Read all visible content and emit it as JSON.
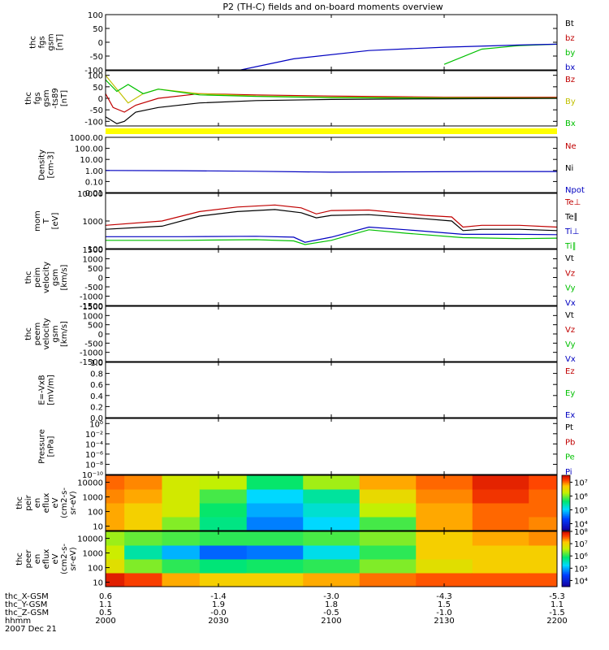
{
  "title": "P2 (TH-C) fields and on-board moments overview",
  "date": "2007 Dec 21",
  "xaxis": {
    "row_labels": [
      "thc_X-GSM",
      "thc_Y-GSM",
      "thc_Z-GSM",
      "hhmm"
    ],
    "columns": [
      [
        "0.6",
        "1.1",
        "0.5",
        "2000"
      ],
      [
        "-1.4",
        "1.9",
        "-0.0",
        "2030"
      ],
      [
        "-3.0",
        "1.8",
        "-0.5",
        "2100"
      ],
      [
        "-4.3",
        "1.5",
        "-1.0",
        "2130"
      ],
      [
        "-5.3",
        "1.1",
        "-1.5",
        "2200"
      ]
    ],
    "time_minutes": [
      0,
      30,
      60,
      90,
      120
    ]
  },
  "chart_data": [
    {
      "type": "line",
      "id": "fgs",
      "ylabel": [
        "thc",
        "fgs",
        "gsm",
        "[nT]"
      ],
      "ylim": [
        -100,
        100
      ],
      "ytick_labels": [
        "100",
        "50",
        "0",
        "-50",
        "-100"
      ],
      "ytick_values": [
        100,
        50,
        0,
        -50,
        -100
      ],
      "series": [
        {
          "name": "Bt",
          "color": "#000000",
          "x": [],
          "y": []
        },
        {
          "name": "bz",
          "color": "#c00000",
          "x": [],
          "y": []
        },
        {
          "name": "by",
          "color": "#00c000",
          "x": [
            90,
            100,
            110,
            120
          ],
          "y": [
            -80,
            -25,
            -12,
            -7
          ]
        },
        {
          "name": "bx",
          "color": "#0000c0",
          "x": [
            36,
            50,
            70,
            90,
            110,
            120
          ],
          "y": [
            -100,
            -60,
            -30,
            -18,
            -10,
            -7
          ]
        }
      ]
    },
    {
      "type": "line",
      "id": "fgs_zoom",
      "ylabel": [
        "thc",
        "fgs",
        "gsm",
        "-ts89",
        "[nT]"
      ],
      "ylim": [
        -120,
        120
      ],
      "ytick_labels": [
        "100",
        "50",
        "0",
        "-50",
        "-100"
      ],
      "ytick_values": [
        100,
        50,
        0,
        -50,
        -100
      ],
      "series": [
        {
          "name": "Bz",
          "color": "#c00000",
          "x": [
            0,
            2,
            5,
            8,
            14,
            25,
            40,
            60,
            90,
            120
          ],
          "y": [
            20,
            -40,
            -60,
            -30,
            0,
            20,
            15,
            10,
            5,
            5
          ]
        },
        {
          "name": "By",
          "color": "#c0c000",
          "x": [
            0,
            3,
            6,
            10,
            14,
            25,
            40,
            60,
            90,
            120
          ],
          "y": [
            100,
            40,
            -20,
            20,
            40,
            20,
            10,
            5,
            2,
            2
          ]
        },
        {
          "name": "Bx",
          "color": "#00c000",
          "x": [
            0,
            3,
            6,
            10,
            14,
            25,
            40,
            60,
            90,
            120
          ],
          "y": [
            80,
            30,
            60,
            20,
            40,
            15,
            8,
            3,
            0,
            0
          ]
        },
        {
          "name": "",
          "color": "#000000",
          "x": [
            0,
            3,
            5,
            8,
            14,
            25,
            40,
            60,
            90,
            120
          ],
          "y": [
            -80,
            -110,
            -100,
            -60,
            -40,
            -20,
            -10,
            -5,
            -2,
            0
          ]
        }
      ]
    },
    {
      "type": "line",
      "id": "density",
      "ylabel": [
        "Density",
        "[cm-3]"
      ],
      "scale": "log",
      "ylim": [
        0.01,
        1000
      ],
      "ytick_labels": [
        "1000.00",
        "100.00",
        "10.00",
        "1.00",
        "0.10",
        "0.01"
      ],
      "ytick_values": [
        1000,
        100,
        10,
        1,
        0.1,
        0.01
      ],
      "series": [
        {
          "name": "Ne",
          "color": "#c00000",
          "x": [],
          "y": []
        },
        {
          "name": "Ni",
          "color": "#000000",
          "x": [],
          "y": []
        },
        {
          "name": "Npot",
          "color": "#0000c0",
          "x": [
            0,
            20,
            40,
            60,
            80,
            100,
            120
          ],
          "y": [
            1.0,
            0.95,
            0.85,
            0.7,
            0.75,
            0.8,
            0.8
          ]
        }
      ]
    },
    {
      "type": "line",
      "id": "temp",
      "ylabel": [
        "mom",
        "T",
        "[eV]"
      ],
      "scale": "log",
      "ylim": [
        100,
        10000
      ],
      "ytick_labels": [
        "10000",
        "1000",
        "100"
      ],
      "ytick_values": [
        10000,
        1000,
        100
      ],
      "series": [
        {
          "name": "Te⊥",
          "color": "#c00000",
          "x": [
            0,
            15,
            25,
            35,
            45,
            52,
            56,
            60,
            70,
            85,
            92,
            95,
            100,
            110,
            120
          ],
          "y": [
            700,
            1000,
            2200,
            3200,
            3800,
            3000,
            1800,
            2400,
            2500,
            1600,
            1400,
            600,
            700,
            700,
            600
          ]
        },
        {
          "name": "Te∥",
          "color": "#000000",
          "x": [
            0,
            15,
            25,
            35,
            45,
            52,
            56,
            60,
            70,
            85,
            92,
            95,
            100,
            110,
            120
          ],
          "y": [
            500,
            650,
            1500,
            2200,
            2600,
            2000,
            1300,
            1600,
            1700,
            1200,
            1000,
            450,
            500,
            500,
            450
          ]
        },
        {
          "name": "Ti⊥",
          "color": "#0000c0",
          "x": [
            0,
            20,
            40,
            50,
            53,
            60,
            70,
            80,
            95,
            110,
            120
          ],
          "y": [
            270,
            270,
            280,
            260,
            170,
            260,
            600,
            480,
            330,
            330,
            320
          ]
        },
        {
          "name": "Ti∥",
          "color": "#00c000",
          "x": [
            0,
            20,
            40,
            50,
            53,
            60,
            70,
            80,
            95,
            110,
            120
          ],
          "y": [
            200,
            200,
            210,
            190,
            140,
            200,
            480,
            360,
            250,
            230,
            240
          ]
        }
      ]
    },
    {
      "type": "line",
      "id": "peim",
      "ylabel": [
        "thc",
        "peim",
        "velocity",
        "gsm",
        "[km/s]"
      ],
      "ylim": [
        -1500,
        1500
      ],
      "ytick_labels": [
        "1500",
        "1000",
        "500",
        "0",
        "-500",
        "-1000",
        "-1500"
      ],
      "ytick_values": [
        1500,
        1000,
        500,
        0,
        -500,
        -1000,
        -1500
      ],
      "series": [
        {
          "name": "Vt",
          "color": "#000000",
          "x": [],
          "y": []
        },
        {
          "name": "Vz",
          "color": "#c00000",
          "x": [],
          "y": []
        },
        {
          "name": "Vy",
          "color": "#00c000",
          "x": [],
          "y": []
        },
        {
          "name": "Vx",
          "color": "#0000c0",
          "x": [],
          "y": []
        }
      ]
    },
    {
      "type": "line",
      "id": "peem",
      "ylabel": [
        "thc",
        "peem",
        "velocity",
        "gsm",
        "[km/s]"
      ],
      "ylim": [
        -1500,
        1500
      ],
      "ytick_labels": [
        "1500",
        "1000",
        "500",
        "0",
        "-500",
        "-1000",
        "-1500"
      ],
      "ytick_values": [
        1500,
        1000,
        500,
        0,
        -500,
        -1000,
        -1500
      ],
      "series": [
        {
          "name": "Vt",
          "color": "#000000",
          "x": [],
          "y": []
        },
        {
          "name": "Vz",
          "color": "#c00000",
          "x": [],
          "y": []
        },
        {
          "name": "Vy",
          "color": "#00c000",
          "x": [],
          "y": []
        },
        {
          "name": "Vx",
          "color": "#0000c0",
          "x": [],
          "y": []
        }
      ]
    },
    {
      "type": "line",
      "id": "efield",
      "ylabel": [
        "E=-VxB",
        "[mV/m]"
      ],
      "ylim": [
        0,
        1
      ],
      "ytick_labels": [
        "1.0",
        "0.8",
        "0.6",
        "0.4",
        "0.2",
        "0.0"
      ],
      "ytick_values": [
        1.0,
        0.8,
        0.6,
        0.4,
        0.2,
        0.0
      ],
      "series": [
        {
          "name": "Ez",
          "color": "#c00000",
          "x": [],
          "y": []
        },
        {
          "name": "Ey",
          "color": "#00c000",
          "x": [],
          "y": []
        },
        {
          "name": "Ex",
          "color": "#0000c0",
          "x": [],
          "y": []
        }
      ]
    },
    {
      "type": "line",
      "id": "pressure",
      "ylabel": [
        "Pressure",
        "[nPa]"
      ],
      "scale": "log",
      "ylim": [
        1e-10,
        10
      ],
      "ytick_labels": [
        "10⁰",
        "10⁻²",
        "10⁻⁴",
        "10⁻⁶",
        "10⁻⁸",
        "10⁻¹⁰"
      ],
      "ytick_values": [
        1,
        0.01,
        0.0001,
        1e-06,
        1e-08,
        1e-10
      ],
      "series": [
        {
          "name": "Pt",
          "color": "#000000",
          "x": [],
          "y": []
        },
        {
          "name": "Pb",
          "color": "#c00000",
          "x": [],
          "y": []
        },
        {
          "name": "Pe",
          "color": "#00c000",
          "x": [],
          "y": []
        },
        {
          "name": "Pi",
          "color": "#0000c0",
          "x": [],
          "y": []
        }
      ]
    },
    {
      "type": "heatmap",
      "id": "peir",
      "ylabel": [
        "thc",
        "peir",
        "en",
        "eflux",
        "eV",
        "(cm2-s-",
        "sr-eV)"
      ],
      "ytick_labels": [
        "10000",
        "1000",
        "100",
        "10"
      ],
      "ytick_values": [
        10000,
        1000,
        100,
        10
      ],
      "colorbar_labels": [
        "10⁷",
        "10⁶",
        "10⁵",
        "10⁴"
      ],
      "colorbar_values": [
        7,
        6,
        5,
        4
      ],
      "color_range": [
        3.5,
        7.5
      ],
      "time_minutes": [
        0,
        10,
        20,
        30,
        45,
        60,
        75,
        90,
        105,
        120
      ],
      "energy_bands": [
        "10",
        "100",
        "1000",
        "10000"
      ],
      "log_eflux": [
        [
          6.8,
          6.8,
          6.9,
          7.0
        ],
        [
          6.6,
          6.6,
          6.8,
          6.9
        ],
        [
          6.0,
          6.3,
          6.3,
          6.3
        ],
        [
          5.5,
          5.6,
          5.8,
          6.2
        ],
        [
          4.6,
          4.8,
          5.0,
          5.6
        ],
        [
          5.0,
          5.2,
          5.4,
          6.1
        ],
        [
          5.8,
          6.2,
          6.5,
          6.8
        ],
        [
          6.8,
          6.8,
          6.9,
          7.0
        ],
        [
          7.0,
          7.0,
          7.2,
          7.3
        ],
        [
          6.9,
          7.0,
          7.0,
          7.1
        ]
      ]
    },
    {
      "type": "heatmap",
      "id": "peer",
      "ylabel": [
        "thc",
        "peer",
        "en",
        "eflux",
        "eV",
        "(cm2-s-",
        "sr-eV)"
      ],
      "ytick_labels": [
        "10000",
        "1000",
        "100",
        "10"
      ],
      "ytick_values": [
        10000,
        1000,
        100,
        10
      ],
      "colorbar_labels": [
        "10⁸",
        "10⁷",
        "10⁶",
        "10⁵",
        "10⁴"
      ],
      "colorbar_values": [
        8,
        7,
        6,
        5,
        4
      ],
      "color_range": [
        3.5,
        8.0
      ],
      "time_minutes": [
        0,
        10,
        20,
        30,
        45,
        60,
        75,
        90,
        105,
        120
      ],
      "energy_bands": [
        "10",
        "100",
        "1000",
        "10000"
      ],
      "log_eflux": [
        [
          7.8,
          6.8,
          6.6,
          6.4
        ],
        [
          7.6,
          6.3,
          5.6,
          6.2
        ],
        [
          7.2,
          6.0,
          5.0,
          6.1
        ],
        [
          7.0,
          5.8,
          4.6,
          6.0
        ],
        [
          7.0,
          5.9,
          4.7,
          6.0
        ],
        [
          7.2,
          6.0,
          5.3,
          6.1
        ],
        [
          7.4,
          6.3,
          6.0,
          6.3
        ],
        [
          7.5,
          6.8,
          7.0,
          7.0
        ],
        [
          7.5,
          7.0,
          7.0,
          7.2
        ],
        [
          7.5,
          7.0,
          7.0,
          7.3
        ]
      ]
    }
  ]
}
